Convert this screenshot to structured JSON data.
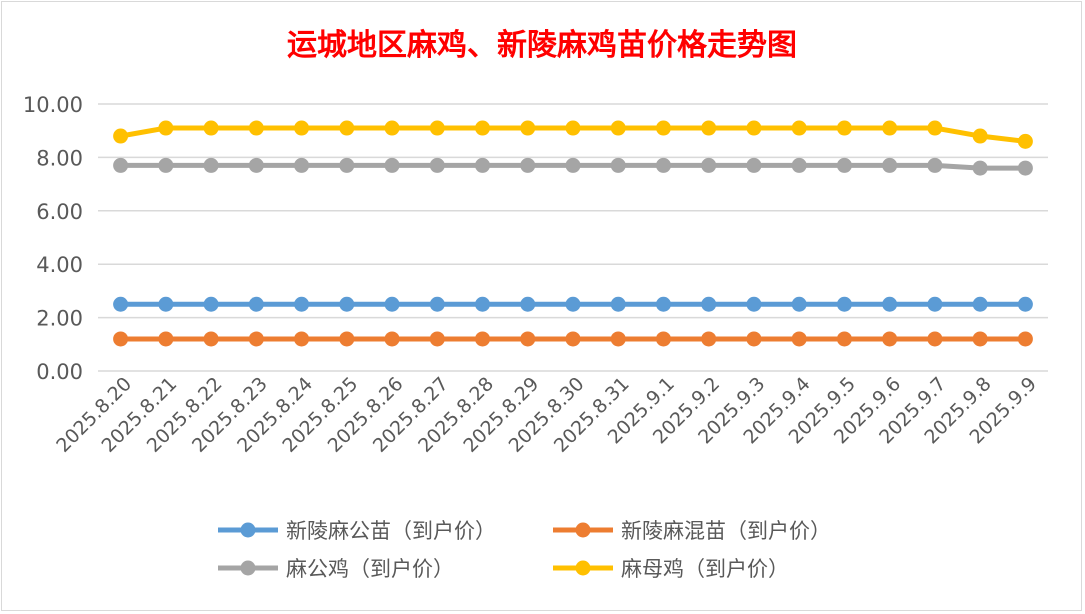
{
  "chart_data": {
    "type": "line",
    "title": "运城地区麻鸡、新陵麻鸡苗价格走势图",
    "xlabel": "",
    "ylabel": "",
    "ylim": [
      0,
      10
    ],
    "yticks": [
      "0.00",
      "2.00",
      "4.00",
      "6.00",
      "8.00",
      "10.00"
    ],
    "grid": true,
    "legend_position": "bottom",
    "categories": [
      "2025.8.20",
      "2025.8.21",
      "2025.8.22",
      "2025.8.23",
      "2025.8.24",
      "2025.8.25",
      "2025.8.26",
      "2025.8.27",
      "2025.8.28",
      "2025.8.29",
      "2025.8.30",
      "2025.8.31",
      "2025.9.1",
      "2025.9.2",
      "2025.9.3",
      "2025.9.4",
      "2025.9.5",
      "2025.9.6",
      "2025.9.7",
      "2025.9.8",
      "2025.9.9"
    ],
    "series": [
      {
        "name": "新陵麻公苗（到户价）",
        "color": "#5b9bd5",
        "values": [
          2.5,
          2.5,
          2.5,
          2.5,
          2.5,
          2.5,
          2.5,
          2.5,
          2.5,
          2.5,
          2.5,
          2.5,
          2.5,
          2.5,
          2.5,
          2.5,
          2.5,
          2.5,
          2.5,
          2.5,
          2.5
        ]
      },
      {
        "name": "新陵麻混苗（到户价）",
        "color": "#ed7d31",
        "values": [
          1.2,
          1.2,
          1.2,
          1.2,
          1.2,
          1.2,
          1.2,
          1.2,
          1.2,
          1.2,
          1.2,
          1.2,
          1.2,
          1.2,
          1.2,
          1.2,
          1.2,
          1.2,
          1.2,
          1.2,
          1.2
        ]
      },
      {
        "name": "麻公鸡（到户价）",
        "color": "#a5a5a5",
        "values": [
          7.7,
          7.7,
          7.7,
          7.7,
          7.7,
          7.7,
          7.7,
          7.7,
          7.7,
          7.7,
          7.7,
          7.7,
          7.7,
          7.7,
          7.7,
          7.7,
          7.7,
          7.7,
          7.7,
          7.6,
          7.6
        ]
      },
      {
        "name": "麻母鸡（到户价）",
        "color": "#ffc000",
        "values": [
          8.8,
          9.1,
          9.1,
          9.1,
          9.1,
          9.1,
          9.1,
          9.1,
          9.1,
          9.1,
          9.1,
          9.1,
          9.1,
          9.1,
          9.1,
          9.1,
          9.1,
          9.1,
          9.1,
          8.8,
          8.6
        ]
      }
    ]
  }
}
